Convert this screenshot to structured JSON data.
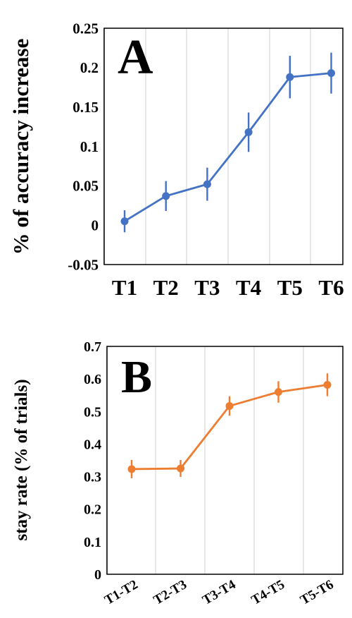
{
  "chart_data": [
    {
      "type": "line",
      "panel_label": "A",
      "ylabel": "% of accuracy increase",
      "xlabel": "",
      "categories": [
        "T1",
        "T2",
        "T3",
        "T4",
        "T5",
        "T6"
      ],
      "series": [
        {
          "values": [
            0.005,
            0.037,
            0.052,
            0.118,
            0.188,
            0.193
          ],
          "errors": [
            0.014,
            0.019,
            0.021,
            0.025,
            0.027,
            0.026
          ],
          "color": "#4472c4"
        }
      ],
      "ylim": [
        -0.05,
        0.25
      ],
      "yticks": [
        "-0.05",
        "0",
        "0.05",
        "0.1",
        "0.15",
        "0.2",
        "0.25"
      ],
      "grid": true
    },
    {
      "type": "line",
      "panel_label": "B",
      "ylabel": "stay rate (% of trials)",
      "xlabel": "",
      "categories": [
        "T1-T2",
        "T2-T3",
        "T3-T4",
        "T4-T5",
        "T5-T6"
      ],
      "series": [
        {
          "values": [
            0.323,
            0.325,
            0.517,
            0.56,
            0.582
          ],
          "errors": [
            0.028,
            0.026,
            0.03,
            0.033,
            0.035
          ],
          "color": "#ed7d31"
        }
      ],
      "ylim": [
        0,
        0.7
      ],
      "yticks": [
        "0",
        "0.1",
        "0.2",
        "0.3",
        "0.4",
        "0.5",
        "0.6",
        "0.7"
      ],
      "grid": true
    }
  ]
}
